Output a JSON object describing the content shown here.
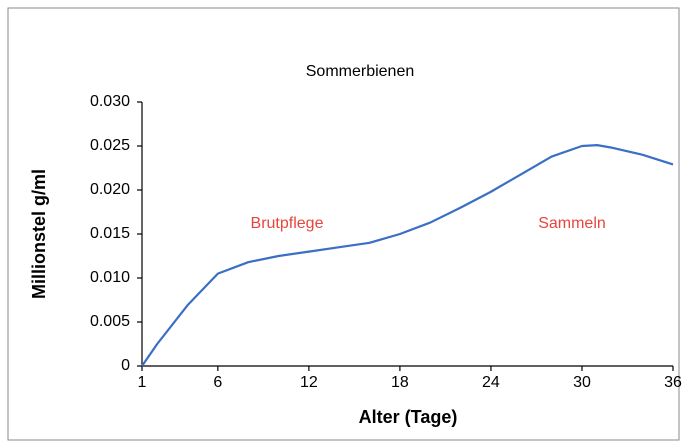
{
  "chart_data": {
    "type": "line",
    "title": "Sommerbienen",
    "x_label": "Alter (Tage)",
    "y_label": "Millionstel g/ml",
    "annotations": [
      "Brutpflege",
      "Sammeln"
    ],
    "annotation_color": "#e8453c",
    "x": [
      1,
      2,
      4,
      6,
      8,
      10,
      12,
      14,
      16,
      18,
      20,
      22,
      24,
      26,
      28,
      30,
      31,
      32,
      34,
      36
    ],
    "series": [
      {
        "name": "Sommerbienen",
        "color": "#3a6fc4",
        "values": [
          0,
          0.0025,
          0.0069,
          0.0105,
          0.0118,
          0.0125,
          0.013,
          0.0135,
          0.014,
          0.015,
          0.0163,
          0.018,
          0.0198,
          0.0218,
          0.0238,
          0.025,
          0.0251,
          0.0248,
          0.024,
          0.0229
        ]
      }
    ],
    "xlim": [
      1,
      36
    ],
    "xticks": [
      1,
      6,
      12,
      18,
      24,
      30,
      36
    ],
    "ylim": [
      0,
      0.03
    ],
    "yticks": [
      0,
      {
        "value": 0.005,
        "label": "0.005"
      },
      {
        "value": 0.01,
        "label": "0.010"
      },
      {
        "value": 0.015,
        "label": "0.015"
      },
      {
        "value": 0.02,
        "label": "0.020"
      },
      {
        "value": 0.025,
        "label": "0.025"
      },
      {
        "value": 0.03,
        "label": "0.030"
      }
    ],
    "grid": false
  }
}
